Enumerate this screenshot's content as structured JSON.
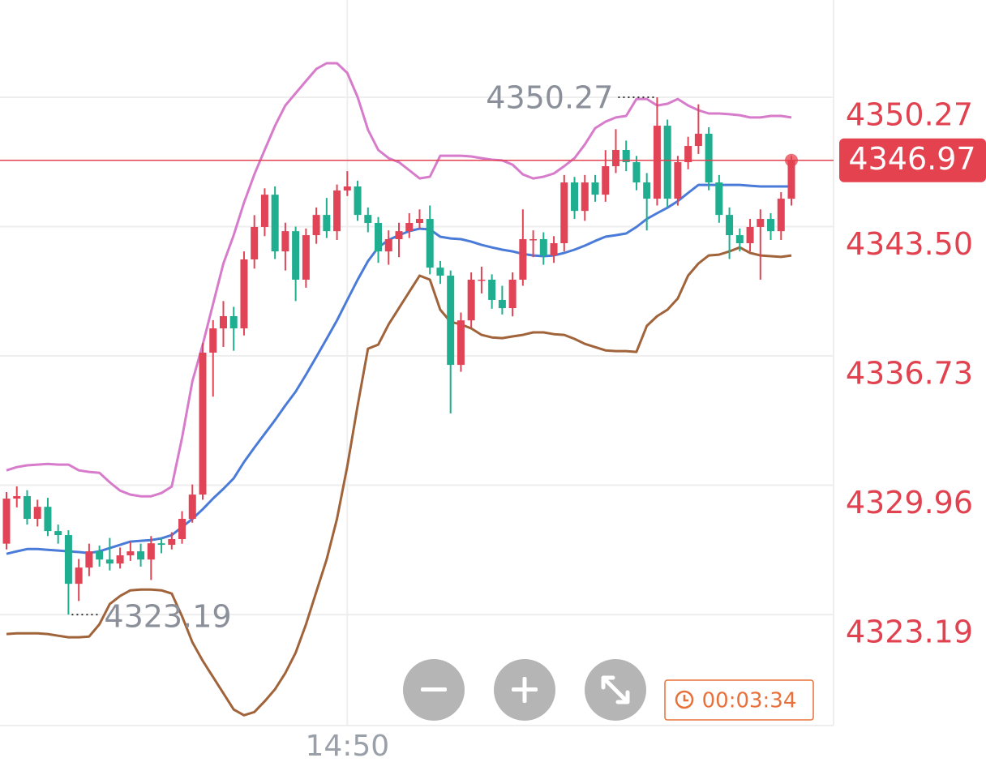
{
  "chart_data": {
    "type": "candlestick",
    "categories": [
      null,
      null,
      null,
      null,
      null,
      null,
      null,
      null,
      null,
      null,
      null,
      null,
      null,
      null,
      null,
      null,
      null,
      null,
      null,
      null,
      null,
      null,
      null,
      null,
      null,
      null,
      null,
      null,
      null,
      null,
      null,
      null,
      null,
      "14:50",
      null,
      null,
      null,
      null,
      null,
      null,
      null,
      null,
      null,
      null,
      null,
      null,
      null,
      null,
      null,
      null,
      null,
      null,
      null,
      null,
      null,
      null,
      null,
      null,
      null,
      null,
      null,
      null,
      null,
      null,
      null,
      null,
      null,
      null,
      null,
      null,
      null,
      null,
      null,
      null,
      null,
      null,
      null
    ],
    "open": [
      4326.9,
      4329.26,
      4329.39,
      4328.2,
      4328.83,
      4327.56,
      4327.35,
      4324.8,
      4325.65,
      4326.5,
      4326.07,
      4325.86,
      4326.29,
      4326.5,
      4326.07,
      4326.92,
      4326.84,
      4327.14,
      4328.2,
      4329.47,
      4336.9,
      4338.17,
      4338.81,
      4338.17,
      4341.78,
      4343.48,
      4345.17,
      4342.2,
      4343.26,
      4340.72,
      4343.05,
      4344.11,
      4343.26,
      4345.39,
      4345.6,
      4344.11,
      4343.69,
      4342.2,
      4342.84,
      4343.26,
      4343.69,
      4343.9,
      4341.35,
      4340.93,
      4336.26,
      4338.59,
      4340.72,
      4340.72,
      4339.66,
      4339.23,
      4340.72,
      4342.84,
      4342.84,
      4341.99,
      4342.63,
      4345.81,
      4344.32,
      4345.81,
      4345.17,
      4346.66,
      4347.51,
      4346.87,
      4345.81,
      4344.96,
      4348.78,
      4344.96,
      4346.87,
      4347.72,
      4348.36,
      4345.81,
      4344.11,
      4343.05,
      4342.63,
      4343.48,
      4343.9,
      4343.26,
      4344.96
    ],
    "high": [
      4329.6,
      4329.9,
      4329.7,
      4329.2,
      4329.3,
      4327.9,
      4327.6,
      4326.1,
      4326.9,
      4326.8,
      4327.2,
      4326.7,
      4327.0,
      4326.9,
      4327.3,
      4327.2,
      4327.5,
      4328.6,
      4330.0,
      4337.4,
      4338.6,
      4339.6,
      4339.3,
      4342.2,
      4344.1,
      4345.5,
      4345.6,
      4343.7,
      4343.5,
      4343.4,
      4344.5,
      4345.0,
      4345.7,
      4346.4,
      4345.9,
      4344.5,
      4344.0,
      4343.3,
      4343.7,
      4344.2,
      4344.4,
      4344.6,
      4341.7,
      4341.2,
      4339.0,
      4341.1,
      4341.4,
      4341.0,
      4340.4,
      4341.1,
      4344.4,
      4343.3,
      4343.2,
      4343.0,
      4346.2,
      4346.1,
      4346.2,
      4346.2,
      4347.5,
      4348.6,
      4348.0,
      4347.2,
      4346.3,
      4350.27,
      4349.1,
      4347.2,
      4348.2,
      4349.9,
      4348.7,
      4346.2,
      4344.5,
      4343.4,
      4343.9,
      4344.4,
      4344.2,
      4345.3,
      4347.2
    ],
    "low": [
      4326.6,
      4328.8,
      4327.9,
      4327.8,
      4327.3,
      4326.9,
      4323.19,
      4323.9,
      4325.2,
      4325.7,
      4325.5,
      4325.6,
      4326.0,
      4325.7,
      4325.0,
      4326.4,
      4326.6,
      4326.9,
      4328.0,
      4329.2,
      4334.6,
      4337.2,
      4337.0,
      4337.8,
      4341.3,
      4343.0,
      4341.8,
      4341.2,
      4339.6,
      4340.3,
      4342.6,
      4342.9,
      4342.8,
      4345.1,
      4343.8,
      4343.2,
      4341.6,
      4341.5,
      4341.9,
      4342.9,
      4343.4,
      4341.0,
      4340.5,
      4333.72,
      4335.9,
      4338.2,
      4340.0,
      4339.2,
      4338.9,
      4338.8,
      4340.4,
      4341.9,
      4341.5,
      4341.6,
      4342.2,
      4343.9,
      4343.8,
      4344.8,
      4344.8,
      4346.3,
      4346.4,
      4345.4,
      4343.3,
      4344.6,
      4344.5,
      4344.6,
      4346.5,
      4347.3,
      4345.4,
      4343.7,
      4341.8,
      4342.2,
      4342.2,
      4340.72,
      4342.8,
      4342.8,
      4344.6
    ],
    "close": [
      4329.26,
      4329.39,
      4328.2,
      4328.83,
      4327.56,
      4327.35,
      4324.8,
      4325.65,
      4326.5,
      4326.07,
      4325.86,
      4326.29,
      4326.5,
      4326.07,
      4326.92,
      4326.84,
      4327.14,
      4328.2,
      4329.47,
      4336.9,
      4338.17,
      4338.81,
      4338.17,
      4341.78,
      4343.48,
      4345.17,
      4342.2,
      4343.26,
      4340.72,
      4343.05,
      4344.11,
      4343.26,
      4345.39,
      4345.6,
      4344.11,
      4343.69,
      4342.2,
      4342.84,
      4343.26,
      4343.69,
      4343.9,
      4341.35,
      4340.93,
      4336.26,
      4338.59,
      4340.72,
      4340.72,
      4339.66,
      4339.23,
      4340.72,
      4342.84,
      4342.84,
      4341.99,
      4342.63,
      4345.81,
      4344.32,
      4345.81,
      4345.17,
      4346.66,
      4347.51,
      4346.87,
      4345.81,
      4344.96,
      4348.78,
      4344.96,
      4346.87,
      4347.72,
      4348.36,
      4345.81,
      4344.11,
      4343.05,
      4342.63,
      4343.48,
      4343.9,
      4343.26,
      4344.96,
      4346.97
    ],
    "up_color": "#e04456",
    "down_color": "#1fae8f",
    "bands": [
      {
        "color": "#d77bcb",
        "values": [
          4330.74,
          4330.91,
          4331.0,
          4331.04,
          4331.08,
          4331.04,
          4331.04,
          4330.74,
          4330.66,
          4330.61,
          4330.11,
          4329.68,
          4329.47,
          4329.38,
          4329.38,
          4329.55,
          4329.89,
          4332.44,
          4335.41,
          4337.32,
          4339.44,
          4341.57,
          4343.05,
          4344.75,
          4346.23,
          4347.51,
          4348.78,
          4349.84,
          4350.48,
          4351.12,
          4351.75,
          4352.05,
          4352.05,
          4351.54,
          4350.27,
          4348.57,
          4347.51,
          4347.08,
          4346.87,
          4346.45,
          4346.02,
          4346.11,
          4347.21,
          4347.21,
          4347.21,
          4347.17,
          4347.08,
          4347.0,
          4346.96,
          4346.74,
          4346.23,
          4346.02,
          4346.11,
          4346.28,
          4346.66,
          4347.08,
          4347.8,
          4348.65,
          4348.99,
          4349.21,
          4349.29,
          4350.18,
          4350.18,
          4349.84,
          4349.93,
          4350.18,
          4349.84,
          4349.59,
          4349.42,
          4349.42,
          4349.38,
          4349.33,
          4349.21,
          4349.21,
          4349.29,
          4349.29,
          4349.21
        ]
      },
      {
        "color": "#4a7bd8",
        "values": [
          4326.37,
          4326.5,
          4326.62,
          4326.62,
          4326.58,
          4326.54,
          4326.5,
          4326.46,
          4326.41,
          4326.5,
          4326.67,
          4326.84,
          4327.01,
          4327.05,
          4327.09,
          4327.18,
          4327.35,
          4327.77,
          4328.2,
          4328.7,
          4329.26,
          4329.77,
          4330.32,
          4331.17,
          4331.93,
          4332.65,
          4333.37,
          4334.14,
          4334.86,
          4335.75,
          4336.68,
          4337.62,
          4338.59,
          4339.66,
          4340.72,
          4341.69,
          4342.41,
          4342.8,
          4343.05,
          4343.26,
          4343.39,
          4343.35,
          4342.97,
          4342.88,
          4342.84,
          4342.71,
          4342.54,
          4342.41,
          4342.29,
          4342.2,
          4342.07,
          4341.99,
          4341.95,
          4341.99,
          4342.12,
          4342.29,
          4342.5,
          4342.75,
          4342.97,
          4343.05,
          4343.14,
          4343.48,
          4343.9,
          4344.2,
          4344.49,
          4344.83,
          4345.26,
          4345.68,
          4345.68,
          4345.68,
          4345.68,
          4345.68,
          4345.64,
          4345.6,
          4345.6,
          4345.6,
          4345.6
        ]
      },
      {
        "color": "#a0633a",
        "values": [
          4322.17,
          4322.21,
          4322.21,
          4322.21,
          4322.17,
          4322.08,
          4322.0,
          4322.0,
          4322.04,
          4322.68,
          4323.74,
          4324.16,
          4324.46,
          4324.5,
          4324.5,
          4324.46,
          4324.29,
          4323.1,
          4321.74,
          4320.77,
          4319.92,
          4319.07,
          4318.22,
          4317.92,
          4318.09,
          4318.65,
          4319.28,
          4320.13,
          4321.19,
          4322.68,
          4324.38,
          4326.07,
          4328.2,
          4330.95,
          4334.14,
          4337.11,
          4337.32,
          4338.38,
          4339.23,
          4340.08,
          4340.93,
          4340.72,
          4339.15,
          4338.51,
          4338.38,
          4338.17,
          4337.83,
          4337.7,
          4337.66,
          4337.75,
          4337.83,
          4337.96,
          4337.96,
          4337.87,
          4337.83,
          4337.62,
          4337.36,
          4337.19,
          4337.02,
          4336.98,
          4336.98,
          4336.94,
          4338.3,
          4338.81,
          4339.15,
          4339.74,
          4340.93,
          4341.57,
          4341.99,
          4342.03,
          4342.2,
          4342.41,
          4342.12,
          4341.99,
          4341.95,
          4341.91,
          4341.99
        ]
      }
    ],
    "ylim": [
      4317.38,
      4355.36
    ],
    "yticks": [
      4350.27,
      {
        "value": 4343.5,
        "label": "4343.50"
      },
      4336.73,
      4329.96,
      4323.19
    ],
    "grid": true,
    "high_label": 4350.27,
    "low_label": 4323.19,
    "last_price": 4346.97,
    "last_price_color": "#e5424f",
    "countdown": "00:03:34"
  }
}
